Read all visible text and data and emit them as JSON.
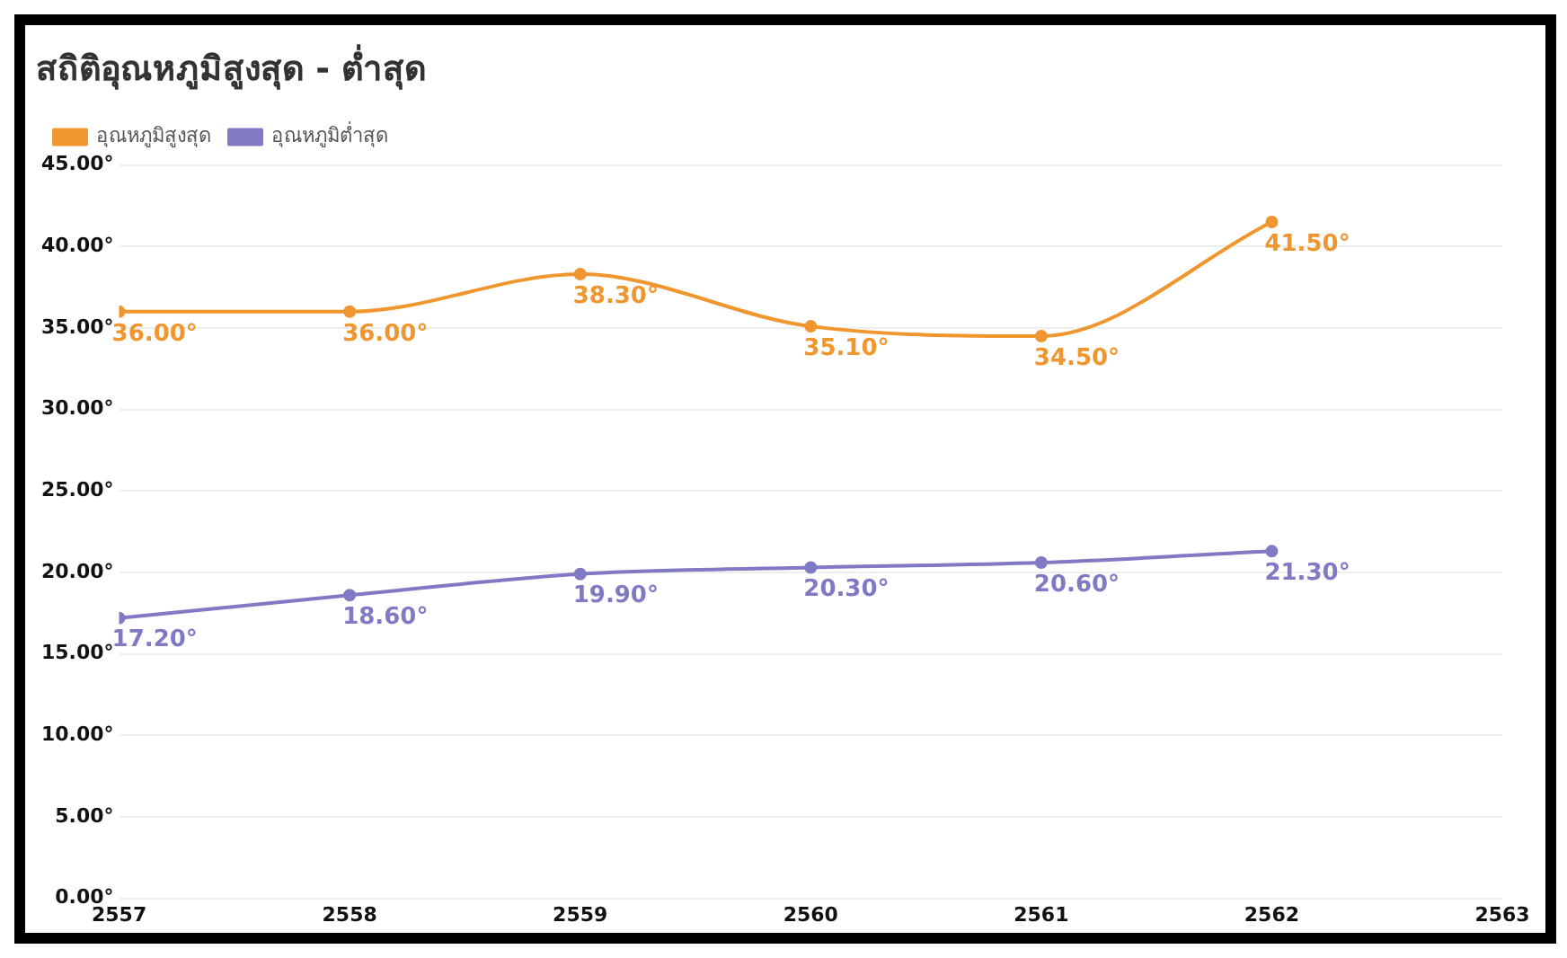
{
  "chart_data": {
    "type": "line",
    "title": "สถิติอุณหภูมิสูงสุด - ต่ำสุด",
    "x": [
      2557,
      2558,
      2559,
      2560,
      2561,
      2562
    ],
    "series": [
      {
        "name": "อุณหภูมิสูงสุด",
        "color": "#f0962e",
        "values": [
          36.0,
          36.0,
          38.3,
          35.1,
          34.5,
          41.5
        ],
        "value_labels": [
          "36.00°",
          "36.00°",
          "38.30°",
          "35.10°",
          "34.50°",
          "41.50°"
        ]
      },
      {
        "name": "อุณหภูมิต่ำสุด",
        "color": "#8079c4",
        "values": [
          17.2,
          18.6,
          19.9,
          20.3,
          20.6,
          21.3
        ],
        "value_labels": [
          "17.20°",
          "18.60°",
          "19.90°",
          "20.30°",
          "20.60°",
          "21.30°"
        ]
      }
    ],
    "xlim": [
      2557,
      2563
    ],
    "xticks": [
      2557,
      2558,
      2559,
      2560,
      2561,
      2562,
      2563
    ],
    "ylim": [
      0,
      45
    ],
    "yticks": [
      {
        "value": 0,
        "label": "0.00°"
      },
      {
        "value": 5,
        "label": "5.00°"
      },
      {
        "value": 10,
        "label": "10.00°"
      },
      {
        "value": 15,
        "label": "15.00°"
      },
      {
        "value": 20,
        "label": "20.00°"
      },
      {
        "value": 25,
        "label": "25.00°"
      },
      {
        "value": 30,
        "label": "30.00°"
      },
      {
        "value": 35,
        "label": "35.00°"
      },
      {
        "value": 40,
        "label": "40.00°"
      },
      {
        "value": 45,
        "label": "45.00°"
      }
    ],
    "grid": "y",
    "legend": "top left",
    "marker": "circle",
    "line_style": "solid"
  }
}
